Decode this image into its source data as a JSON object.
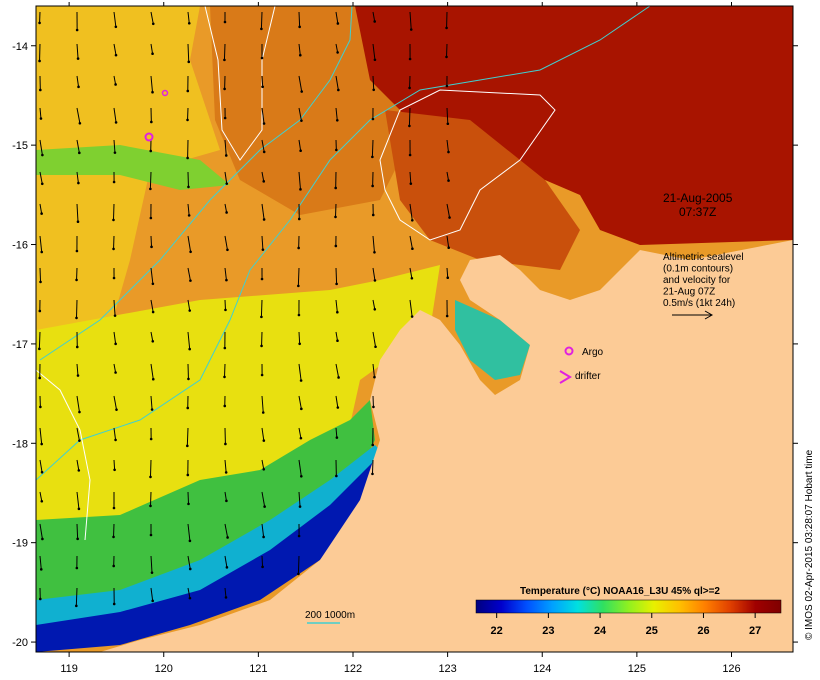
{
  "map": {
    "lon_ticks": [
      "119",
      "120",
      "121",
      "122",
      "123",
      "124",
      "125",
      "126"
    ],
    "lat_ticks": [
      "-14",
      "-15",
      "-16",
      "-17",
      "-18",
      "-19",
      "-20"
    ],
    "lon_range": [
      118.65,
      126.65
    ],
    "lat_range": [
      -20.1,
      -13.6
    ]
  },
  "annotations": {
    "date": "21-Aug-2005",
    "time": "07:37Z",
    "altimetry_lines": [
      "Altimetric sealevel",
      "(0.1m contours)",
      "and velocity for",
      "21-Aug 07Z",
      "0.5m/s (1kt 24h)"
    ],
    "argo_label": "Argo",
    "drifter_label": "drifter",
    "isobath_label": "200  1000m"
  },
  "colorbar": {
    "title": "Temperature (°C) NOAA16_L3U 45% ql>=2",
    "ticks": [
      "22",
      "23",
      "24",
      "25",
      "26",
      "27"
    ],
    "range": [
      21.6,
      27.5
    ],
    "colors": [
      "#00007f",
      "#0000cc",
      "#0050ff",
      "#00a0ff",
      "#00e0e0",
      "#30e060",
      "#90f020",
      "#e8f000",
      "#ffc000",
      "#ff8000",
      "#e04000",
      "#a00000",
      "#7f0000"
    ]
  },
  "credit": "© IMOS 02-Apr-2015 03:28:07 Hobart time",
  "colors": {
    "land": "#fccb96",
    "warm_sea": "#e38a1e",
    "hot_sea": "#a91200",
    "cool_sea": "#20b040",
    "cold_sea": "#0015a8",
    "marker": "#e020e0",
    "isobath": "#40d0d0"
  }
}
